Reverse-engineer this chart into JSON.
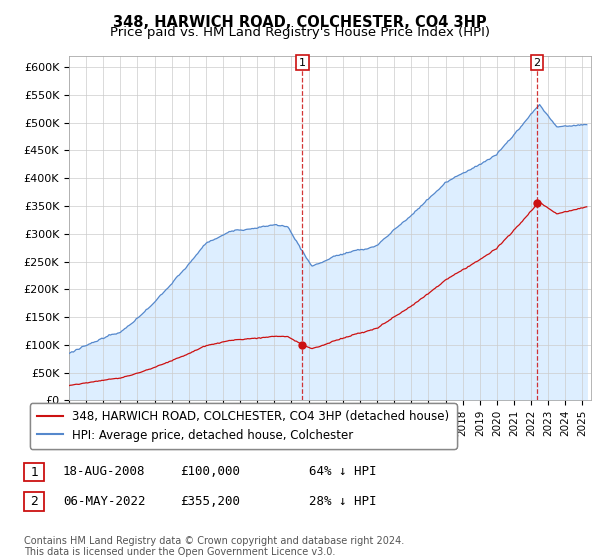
{
  "title": "348, HARWICH ROAD, COLCHESTER, CO4 3HP",
  "subtitle": "Price paid vs. HM Land Registry's House Price Index (HPI)",
  "ylim": [
    0,
    620000
  ],
  "yticks": [
    0,
    50000,
    100000,
    150000,
    200000,
    250000,
    300000,
    350000,
    400000,
    450000,
    500000,
    550000,
    600000
  ],
  "ytick_labels": [
    "£0",
    "£50K",
    "£100K",
    "£150K",
    "£200K",
    "£250K",
    "£300K",
    "£350K",
    "£400K",
    "£450K",
    "£500K",
    "£550K",
    "£600K"
  ],
  "hpi_color": "#5588cc",
  "hpi_fill_color": "#ddeeff",
  "price_color": "#cc1111",
  "plot_bg_color": "#ffffff",
  "grid_color": "#cccccc",
  "transaction1_date": 2008.63,
  "transaction1_price": 100000,
  "transaction2_date": 2022.35,
  "transaction2_price": 355200,
  "legend_line1": "348, HARWICH ROAD, COLCHESTER, CO4 3HP (detached house)",
  "legend_line2": "HPI: Average price, detached house, Colchester",
  "table_row1": [
    "1",
    "18-AUG-2008",
    "£100,000",
    "64% ↓ HPI"
  ],
  "table_row2": [
    "2",
    "06-MAY-2022",
    "£355,200",
    "28% ↓ HPI"
  ],
  "footnote": "Contains HM Land Registry data © Crown copyright and database right 2024.\nThis data is licensed under the Open Government Licence v3.0.",
  "title_fontsize": 10.5,
  "subtitle_fontsize": 9.5,
  "tick_fontsize": 8,
  "legend_fontsize": 8.5,
  "annot_fontsize": 8
}
